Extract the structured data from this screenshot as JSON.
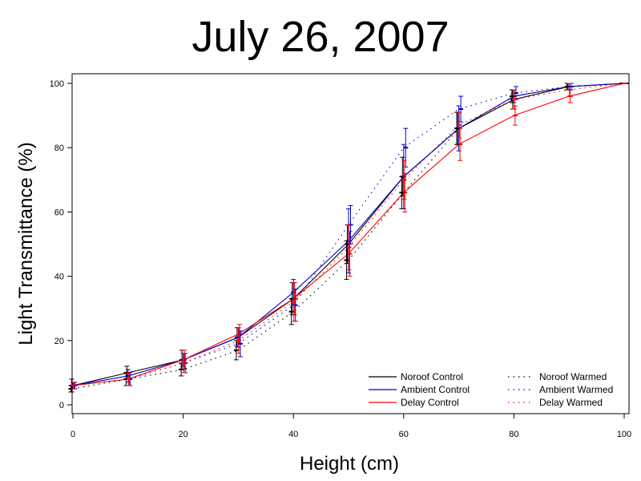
{
  "chart_data": {
    "type": "line",
    "title": "July 26, 2007",
    "xlabel": "Height (cm)",
    "ylabel": "Light Transmittance (%)",
    "xlim": [
      0,
      100
    ],
    "ylim": [
      0,
      100
    ],
    "xticks": [
      0,
      20,
      40,
      60,
      80,
      100
    ],
    "yticks": [
      0,
      20,
      40,
      60,
      80,
      100
    ],
    "grid": false,
    "legend_position": "bottom-right",
    "x": [
      0,
      10,
      20,
      30,
      40,
      50,
      60,
      70,
      80,
      90,
      100
    ],
    "series": [
      {
        "name": "Noroof Control",
        "color": "#000000",
        "style": "solid",
        "values": [
          6,
          10,
          14,
          21,
          33,
          50,
          71,
          86,
          95,
          99,
          100
        ],
        "errors": [
          2,
          2,
          3,
          3,
          5,
          6,
          6,
          5,
          3,
          1,
          0
        ]
      },
      {
        "name": "Ambient Control",
        "color": "#0000cc",
        "style": "solid",
        "values": [
          6,
          9,
          14,
          21,
          35,
          51,
          71,
          86,
          96,
          99,
          100
        ],
        "errors": [
          1,
          2,
          2,
          3,
          4,
          10,
          10,
          7,
          2,
          1,
          0
        ]
      },
      {
        "name": "Delay Control",
        "color": "#ff0000",
        "style": "solid",
        "values": [
          6,
          8,
          14,
          22,
          33,
          47,
          66,
          81,
          90,
          96,
          100
        ],
        "errors": [
          1,
          2,
          3,
          3,
          5,
          7,
          6,
          5,
          3,
          2,
          0
        ]
      },
      {
        "name": "Noroof Warmed",
        "color": "#000000",
        "style": "dotted",
        "values": [
          5,
          8,
          11,
          17,
          29,
          45,
          66,
          86,
          96,
          99,
          100
        ],
        "errors": [
          1,
          2,
          2,
          3,
          4,
          6,
          5,
          5,
          2,
          1,
          0
        ]
      },
      {
        "name": "Ambient Warmed",
        "color": "#0000cc",
        "style": "dotted",
        "values": [
          6,
          8,
          13,
          19,
          31,
          56,
          80,
          92,
          97,
          99,
          100
        ],
        "errors": [
          1,
          2,
          3,
          4,
          5,
          6,
          6,
          4,
          2,
          1,
          0
        ]
      },
      {
        "name": "Delay Warmed",
        "color": "#ff0000",
        "style": "dotted",
        "values": [
          6,
          8,
          13,
          20,
          32,
          49,
          70,
          87,
          95,
          98,
          100
        ],
        "errors": [
          1,
          2,
          3,
          4,
          6,
          7,
          6,
          4,
          3,
          2,
          0
        ]
      }
    ]
  }
}
